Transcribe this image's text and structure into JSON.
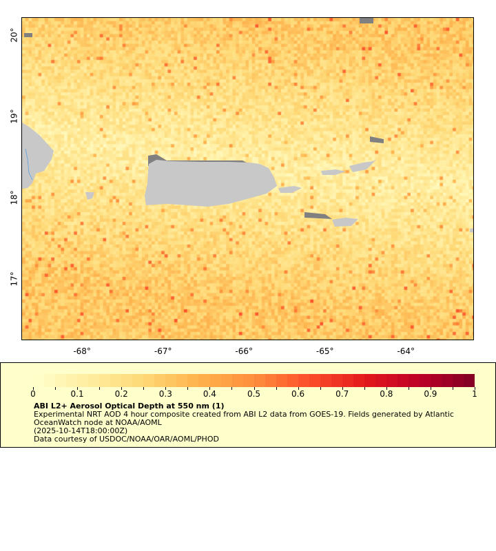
{
  "chart_data": {
    "type": "heatmap",
    "title": "ABI L2+ Aerosol Optical Depth at 550 nm (1)",
    "description_lines": [
      "Experimental NRT AOD 4 hour composite created from ABI L2 data from GOES-19. Fields generated by Atlantic OceanWatch node at NOAA/AOML",
      "(2025-10-14T18:00:00Z)",
      "Data courtesy of USDOC/NOAA/OAR/AOML/PHOD"
    ],
    "x_range": [
      -68.75,
      -63.16
    ],
    "y_range": [
      16.25,
      20.22
    ],
    "x_ticks": [
      -68,
      -67,
      -66,
      -65,
      -64
    ],
    "x_tick_labels": [
      "-68°",
      "-67°",
      "-66°",
      "-65°",
      "-64°"
    ],
    "y_ticks": [
      20,
      19,
      18,
      17
    ],
    "y_tick_labels": [
      "20°",
      "19°",
      "18°",
      "17°"
    ],
    "colorbar": {
      "range": [
        0,
        1
      ],
      "ticks": [
        "0",
        "0.1",
        "0.2",
        "0.3",
        "0.4",
        "0.5",
        "0.6",
        "0.7",
        "0.8",
        "0.9",
        "1"
      ],
      "palette": [
        "#ffffcc",
        "#ffeda0",
        "#fed976",
        "#feb24c",
        "#fd8d3c",
        "#fc4e2a",
        "#e31a1c",
        "#bd0026",
        "#800026"
      ]
    },
    "typical_value_range": [
      0.05,
      0.6
    ],
    "land_color": "#c8c8c8",
    "nodata_color": "#808080"
  }
}
